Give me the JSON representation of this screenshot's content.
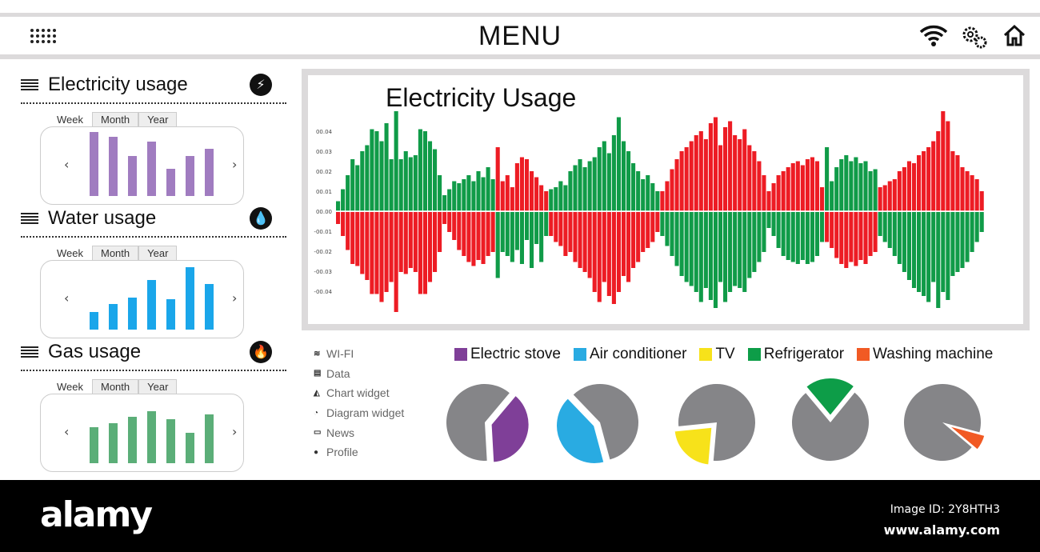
{
  "header": {
    "title": "MENU",
    "icons": [
      "grid-icon",
      "wifi-icon",
      "settings-icon",
      "home-icon"
    ]
  },
  "widgets": [
    {
      "title": "Electricity usage",
      "icon": "lightning-icon",
      "glyph": "⚡",
      "tabs": [
        "Week",
        "Month",
        "Year"
      ],
      "color": "#a07cc0",
      "values": [
        80,
        74,
        50,
        68,
        34,
        50,
        59
      ]
    },
    {
      "title": "Water usage",
      "icon": "water-drop-icon",
      "glyph": "💧",
      "tabs": [
        "Week",
        "Month",
        "Year"
      ],
      "color": "#1aa6ea",
      "values": [
        22,
        32,
        40,
        62,
        38,
        78,
        57
      ]
    },
    {
      "title": "Gas usage",
      "icon": "flame-icon",
      "glyph": "🔥",
      "tabs": [
        "Week",
        "Month",
        "Year"
      ],
      "color": "#5bae78",
      "values": [
        45,
        50,
        58,
        65,
        55,
        38,
        61
      ]
    }
  ],
  "menu": [
    {
      "icon": "wifi-icon",
      "g": "≋",
      "label": "WI-FI"
    },
    {
      "icon": "database-icon",
      "g": "▤",
      "label": "Data"
    },
    {
      "icon": "chart-icon",
      "g": "◭",
      "label": "Chart widget"
    },
    {
      "icon": "pie-icon",
      "g": "◔",
      "label": "Diagram widget"
    },
    {
      "icon": "chat-icon",
      "g": "▭",
      "label": "News"
    },
    {
      "icon": "user-icon",
      "g": "●",
      "label": "Profile"
    }
  ],
  "chart_data": {
    "type": "bar",
    "title": "Electricity Usage",
    "yticks": [
      "00.04",
      "00.03",
      "00.02",
      "00.01",
      "00.00",
      "-00.01",
      "-00.02",
      "-00.03",
      "-00.04"
    ],
    "ylim": [
      -0.05,
      0.05
    ],
    "colors": {
      "green": "#109b48",
      "red": "#ed1c24"
    },
    "segments": [
      {
        "top": "green",
        "up": [
          0.005,
          0.011,
          0.018,
          0.026,
          0.023,
          0.03,
          0.033,
          0.041,
          0.04,
          0.035,
          0.044,
          0.026,
          0.05,
          0.026,
          0.03,
          0.027,
          0.028,
          0.041,
          0.04,
          0.035,
          0.031,
          0.018
        ],
        "down": [
          -0.006,
          -0.012,
          -0.019,
          -0.026,
          -0.027,
          -0.031,
          -0.034,
          -0.041,
          -0.041,
          -0.045,
          -0.04,
          -0.035,
          -0.05,
          -0.03,
          -0.031,
          -0.028,
          -0.03,
          -0.041,
          -0.041,
          -0.035,
          -0.03,
          -0.02
        ]
      },
      {
        "top": "green",
        "up": [
          0.008,
          0.011,
          0.015,
          0.014,
          0.016,
          0.018,
          0.015,
          0.02,
          0.017,
          0.022,
          0.016
        ],
        "down": [
          -0.006,
          -0.01,
          -0.014,
          -0.019,
          -0.022,
          -0.025,
          -0.027,
          -0.024,
          -0.026,
          -0.022,
          -0.02
        ]
      },
      {
        "top": "red",
        "up": [
          0.032,
          0.015,
          0.018,
          0.012,
          0.024,
          0.027,
          0.026,
          0.02,
          0.017,
          0.013,
          0.01
        ],
        "down": [
          -0.033,
          -0.02,
          -0.022,
          -0.025,
          -0.019,
          -0.026,
          -0.014,
          -0.028,
          -0.016,
          -0.025,
          -0.012
        ]
      },
      {
        "top": "green",
        "up": [
          0.011,
          0.012,
          0.015,
          0.013,
          0.02,
          0.023,
          0.026,
          0.022,
          0.025,
          0.027,
          0.032,
          0.035,
          0.029,
          0.038,
          0.047,
          0.035,
          0.03,
          0.024,
          0.02,
          0.016,
          0.018,
          0.014,
          0.01
        ],
        "down": [
          -0.012,
          -0.015,
          -0.017,
          -0.022,
          -0.02,
          -0.025,
          -0.028,
          -0.03,
          -0.033,
          -0.04,
          -0.045,
          -0.035,
          -0.042,
          -0.046,
          -0.04,
          -0.032,
          -0.035,
          -0.028,
          -0.025,
          -0.02,
          -0.018,
          -0.015,
          -0.01
        ]
      },
      {
        "top": "red",
        "up": [
          0.01,
          0.015,
          0.021,
          0.026,
          0.03,
          0.032,
          0.035,
          0.038,
          0.04,
          0.036,
          0.044,
          0.047,
          0.033,
          0.042,
          0.045,
          0.038,
          0.036,
          0.041,
          0.033,
          0.03,
          0.025,
          0.018
        ],
        "down": [
          -0.012,
          -0.017,
          -0.022,
          -0.027,
          -0.032,
          -0.035,
          -0.037,
          -0.04,
          -0.045,
          -0.038,
          -0.044,
          -0.048,
          -0.035,
          -0.045,
          -0.04,
          -0.037,
          -0.038,
          -0.04,
          -0.033,
          -0.03,
          -0.025,
          -0.02
        ]
      },
      {
        "top": "red",
        "up": [
          0.01,
          0.014,
          0.018,
          0.02,
          0.022,
          0.024,
          0.025,
          0.023,
          0.026,
          0.027,
          0.025,
          0.012
        ],
        "down": [
          -0.008,
          -0.012,
          -0.018,
          -0.022,
          -0.024,
          -0.025,
          -0.026,
          -0.024,
          -0.026,
          -0.025,
          -0.022,
          -0.015
        ]
      },
      {
        "top": "green",
        "up": [
          0.032,
          0.015,
          0.022,
          0.026,
          0.028,
          0.025,
          0.027,
          0.024,
          0.025,
          0.02,
          0.021
        ],
        "down": [
          -0.015,
          -0.018,
          -0.023,
          -0.026,
          -0.028,
          -0.025,
          -0.027,
          -0.024,
          -0.026,
          -0.022,
          -0.02
        ]
      },
      {
        "top": "red",
        "up": [
          0.012,
          0.013,
          0.015,
          0.016,
          0.02,
          0.022,
          0.025,
          0.024,
          0.028,
          0.03,
          0.032,
          0.035,
          0.04,
          0.05,
          0.045,
          0.03,
          0.028,
          0.022,
          0.02,
          0.018,
          0.016,
          0.01
        ],
        "down": [
          -0.012,
          -0.015,
          -0.018,
          -0.022,
          -0.026,
          -0.03,
          -0.034,
          -0.038,
          -0.04,
          -0.042,
          -0.045,
          -0.035,
          -0.048,
          -0.04,
          -0.044,
          -0.032,
          -0.03,
          -0.028,
          -0.025,
          -0.02,
          -0.015,
          -0.01
        ]
      }
    ]
  },
  "pies": {
    "legend": [
      {
        "label": "Electric stove",
        "color": "#7f3f98"
      },
      {
        "label": "Air conditioner",
        "color": "#29abe2"
      },
      {
        "label": "TV",
        "color": "#f7e21a"
      },
      {
        "label": "Refrigerator",
        "color": "#0d9d48"
      },
      {
        "label": "Washing machine",
        "color": "#f15a24"
      }
    ],
    "shares": [
      0.38,
      0.42,
      0.22,
      0.22,
      0.07
    ],
    "rest_color": "#858588"
  },
  "footer": {
    "logo": "alamy",
    "image_id": "Image ID: 2Y8HTH3",
    "url": "www.alamy.com"
  }
}
